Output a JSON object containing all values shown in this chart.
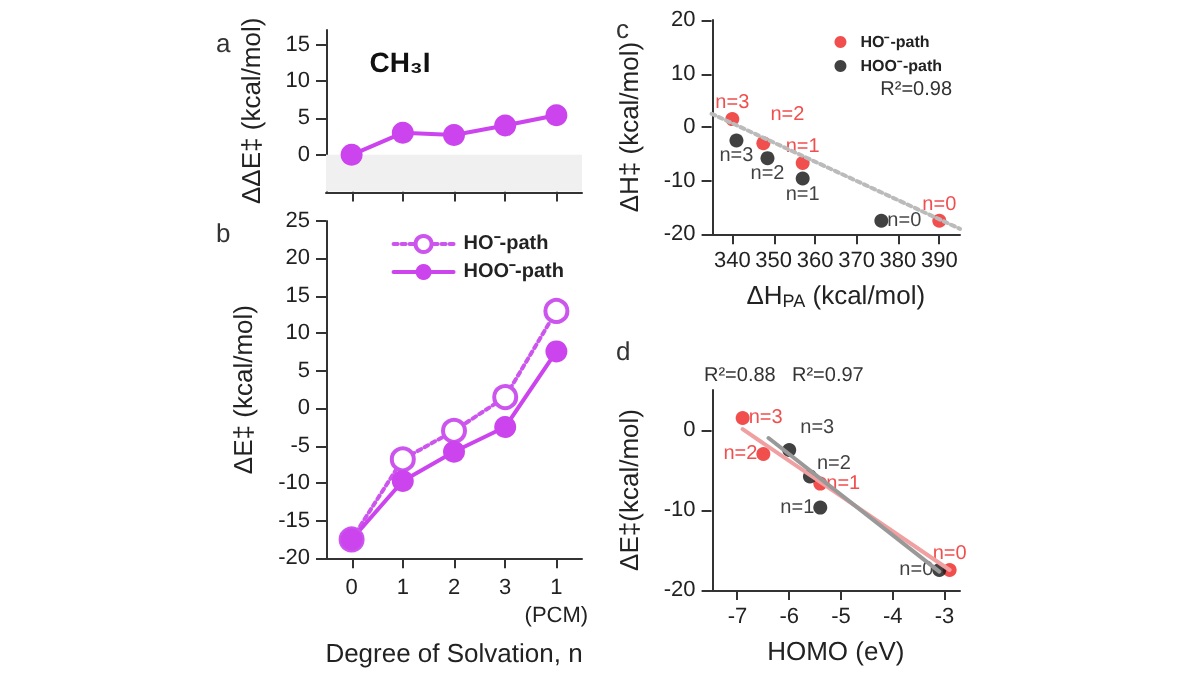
{
  "chart_data": [
    {
      "type": "line",
      "title": "CH₃I",
      "ylabel": "ΔΔE‡ (kcal/mol)",
      "annotations": [
        "a"
      ],
      "categories": [
        null,
        null,
        null,
        null,
        null
      ],
      "ylim": [
        -5,
        17
      ],
      "yticks": [
        0,
        5,
        10,
        15
      ],
      "marker": "circle",
      "line_style": "solid",
      "bands": [
        {
          "axis": "y",
          "from": -5,
          "to": 0,
          "color": "#f0f0f0"
        }
      ],
      "series": [
        {
          "color": "#cc44ee",
          "values": [
            0,
            3,
            2.7,
            4,
            5.4
          ]
        }
      ]
    },
    {
      "type": "line",
      "ylabel": "ΔE‡ (kcal/mol)",
      "xlabel": "Degree of Solvation, n",
      "annotations": [
        "b"
      ],
      "categories": [
        "0",
        "1",
        "2",
        "3",
        "1\n(PCM)"
      ],
      "ylim": [
        -20,
        25
      ],
      "yticks": [
        -20,
        -15,
        -10,
        -5,
        0,
        5,
        10,
        15,
        20,
        25
      ],
      "marker": "circle",
      "legend": "top right",
      "series": [
        {
          "name": "HO⁻-path",
          "color": "#cc55ee",
          "line_style": "dotted",
          "values": [
            -17.5,
            -6.8,
            -3,
            1.5,
            13
          ]
        },
        {
          "name": "HOO⁻-path",
          "color": "#cc44ee",
          "line_style": "solid",
          "values": [
            -17.5,
            -9.7,
            -5.8,
            -2.5,
            7.6
          ]
        }
      ]
    },
    {
      "type": "scatter",
      "xlabel": "ΔH$_{PA}$ (kcal/mol)",
      "ylabel": "ΔH‡ (kcal/mol)",
      "xlim": [
        335,
        395
      ],
      "xticks": [
        340,
        350,
        360,
        370,
        380,
        390
      ],
      "ylim": [
        -20,
        20
      ],
      "yticks": [
        -20,
        -10,
        0,
        10,
        20
      ],
      "marker": "circle",
      "legend": "top right",
      "annotations": [
        "c",
        "R²=0.98",
        {
          "text": "n=3",
          "x": 340,
          "y": 1.5
        },
        {
          "text": "n=2",
          "x": 347.5,
          "y": -3
        },
        {
          "text": "n=1",
          "x": 357,
          "y": -6.7
        },
        {
          "text": "n=0",
          "x": 390,
          "y": -17.5
        },
        {
          "text": "n=3",
          "x": 341,
          "y": -2.5
        },
        {
          "text": "n=2",
          "x": 348.5,
          "y": -5.8
        },
        {
          "text": "n=1",
          "x": 357,
          "y": -9.6
        },
        {
          "text": "n=0",
          "x": 376,
          "y": -17.5
        }
      ],
      "series": [
        {
          "name": "HO⁻-path",
          "color": "#ee2222",
          "x": [
            340,
            347.5,
            357,
            390
          ],
          "values": [
            1.5,
            -3,
            -6.7,
            -17.5
          ]
        },
        {
          "name": "HOO⁻-path",
          "color": "#111111",
          "x": [
            341,
            348.5,
            357,
            376
          ],
          "values": [
            -2.5,
            -5.8,
            -9.6,
            -17.5
          ]
        },
        {
          "type": "line",
          "color": "#bbbbbb",
          "line_style": "dotted",
          "marker": "none",
          "x": [
            335,
            395
          ],
          "values": [
            2.5,
            -19
          ]
        }
      ]
    },
    {
      "type": "scatter",
      "xlabel": "HOMO (eV)",
      "ylabel": "ΔE‡(kcal/mol)",
      "xlim": [
        -7.5,
        -2.7
      ],
      "xticks": [
        -7,
        -6,
        -5,
        -4,
        -3
      ],
      "ylim": [
        -20,
        5
      ],
      "yticks": [
        -20,
        -10,
        0
      ],
      "marker": "circle",
      "annotations": [
        "d",
        "R²=0.88",
        "R²=0.97",
        {
          "text": "n=3",
          "x": -6.9,
          "y": 1.5
        },
        {
          "text": "n=2",
          "x": -6.5,
          "y": -3
        },
        {
          "text": "n=1",
          "x": -5.4,
          "y": -6.7
        },
        {
          "text": "n=0",
          "x": -2.9,
          "y": -17.5
        },
        {
          "text": "n=3",
          "x": -6.0,
          "y": -2.5
        },
        {
          "text": "n=2",
          "x": -5.6,
          "y": -5.8
        },
        {
          "text": "n=1",
          "x": -5.4,
          "y": -9.7
        },
        {
          "text": "n=0",
          "x": -3.1,
          "y": -17.5
        }
      ],
      "series": [
        {
          "color": "#ee2222",
          "x": [
            -6.9,
            -6.5,
            -5.4,
            -2.9
          ],
          "values": [
            1.5,
            -3,
            -6.7,
            -17.5
          ]
        },
        {
          "color": "#111111",
          "x": [
            -6.0,
            -5.6,
            -5.4,
            -3.1
          ],
          "values": [
            -2.5,
            -5.8,
            -9.7,
            -17.5
          ]
        },
        {
          "type": "line",
          "color": "#f0a0a0",
          "line_style": "solid",
          "marker": "none",
          "x": [
            -6.9,
            -2.9
          ],
          "values": [
            0.1,
            -17.5
          ]
        },
        {
          "type": "line",
          "color": "#999999",
          "line_style": "solid",
          "marker": "none",
          "x": [
            -6.4,
            -3.1
          ],
          "values": [
            -1,
            -17.7
          ]
        }
      ]
    }
  ]
}
